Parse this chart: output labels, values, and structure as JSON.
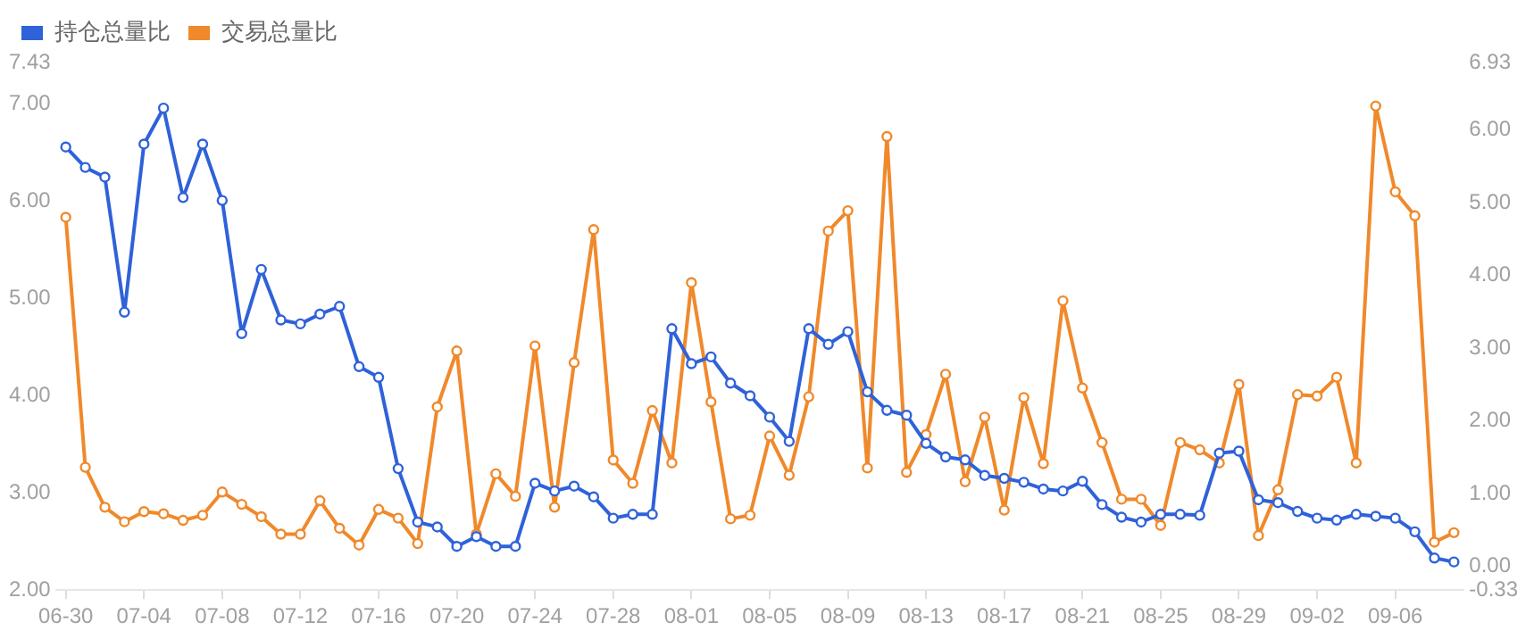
{
  "chart_data": {
    "type": "line",
    "categories": [
      "06-30",
      null,
      null,
      null,
      "07-04",
      null,
      null,
      null,
      "07-08",
      null,
      null,
      null,
      "07-12",
      null,
      null,
      null,
      "07-16",
      null,
      null,
      null,
      "07-20",
      null,
      null,
      null,
      "07-24",
      null,
      null,
      null,
      "07-28",
      null,
      null,
      null,
      "08-01",
      null,
      null,
      null,
      "08-05",
      null,
      null,
      null,
      "08-09",
      null,
      null,
      null,
      "08-13",
      null,
      null,
      null,
      "08-17",
      null,
      null,
      null,
      "08-21",
      null,
      null,
      null,
      "08-25",
      null,
      null,
      null,
      "08-29",
      null,
      null,
      null,
      "09-02",
      null,
      null,
      null,
      "09-06",
      null,
      null,
      null
    ],
    "series": [
      {
        "name": "持仓总量比",
        "color": "#2f62d9",
        "values": [
          6.56,
          6.35,
          6.25,
          4.86,
          6.59,
          6.96,
          6.04,
          6.59,
          6.01,
          4.64,
          5.3,
          4.78,
          4.74,
          4.84,
          4.92,
          4.3,
          4.19,
          3.25,
          2.7,
          2.65,
          2.45,
          2.55,
          2.45,
          2.45,
          3.1,
          3.02,
          3.07,
          2.96,
          2.74,
          2.78,
          2.78,
          4.69,
          4.33,
          4.4,
          4.13,
          4.0,
          3.78,
          3.53,
          4.69,
          4.53,
          4.66,
          4.04,
          3.85,
          3.8,
          3.51,
          3.37,
          3.34,
          3.18,
          3.15,
          3.11,
          3.04,
          3.02,
          3.12,
          2.88,
          2.75,
          2.7,
          2.78,
          2.78,
          2.77,
          3.41,
          3.43,
          2.93,
          2.9,
          2.81,
          2.74,
          2.72,
          2.78,
          2.76,
          2.74,
          2.6,
          2.33,
          2.29
        ]
      },
      {
        "name": "交易总量比",
        "color": "#f0892b",
        "axis": "y2",
        "values": [
          4.8,
          1.36,
          0.81,
          0.61,
          0.75,
          0.72,
          0.63,
          0.7,
          1.02,
          0.85,
          0.68,
          0.44,
          0.44,
          0.9,
          0.52,
          0.29,
          0.78,
          0.66,
          0.31,
          2.19,
          2.96,
          0.44,
          1.27,
          0.96,
          3.03,
          0.81,
          2.8,
          4.63,
          1.46,
          1.14,
          2.14,
          1.42,
          3.9,
          2.26,
          0.65,
          0.7,
          1.79,
          1.25,
          2.33,
          4.61,
          4.89,
          1.35,
          5.91,
          1.29,
          1.81,
          2.64,
          1.16,
          2.05,
          0.77,
          2.32,
          1.41,
          3.65,
          2.45,
          1.7,
          0.92,
          0.92,
          0.56,
          1.7,
          1.6,
          1.42,
          2.5,
          0.42,
          1.05,
          2.36,
          2.34,
          2.6,
          1.42,
          6.33,
          5.15,
          4.82,
          0.33,
          0.46
        ]
      }
    ],
    "ylim": [
      2.0,
      7.43
    ],
    "yticks": [
      {
        "value": 2,
        "label": "2.00"
      },
      {
        "value": 3,
        "label": "3.00"
      },
      {
        "value": 4,
        "label": "4.00"
      },
      {
        "value": 5,
        "label": "5.00"
      },
      {
        "value": 6,
        "label": "6.00"
      },
      {
        "value": 7,
        "label": "7.00"
      },
      {
        "value": 7.43,
        "label": "7.43"
      }
    ],
    "y2lim": [
      -0.33,
      6.93
    ],
    "y2ticks": [
      {
        "value": -0.33,
        "label": "-0.33"
      },
      {
        "value": 0,
        "label": "0.00"
      },
      {
        "value": 1,
        "label": "1.00"
      },
      {
        "value": 2,
        "label": "2.00"
      },
      {
        "value": 3,
        "label": "3.00"
      },
      {
        "value": 4,
        "label": "4.00"
      },
      {
        "value": 5,
        "label": "5.00"
      },
      {
        "value": 6,
        "label": "6.00"
      },
      {
        "value": 6.93,
        "label": "6.93"
      }
    ],
    "legend": "top left",
    "grid": false,
    "marker": "circle",
    "line_style": "solid"
  }
}
